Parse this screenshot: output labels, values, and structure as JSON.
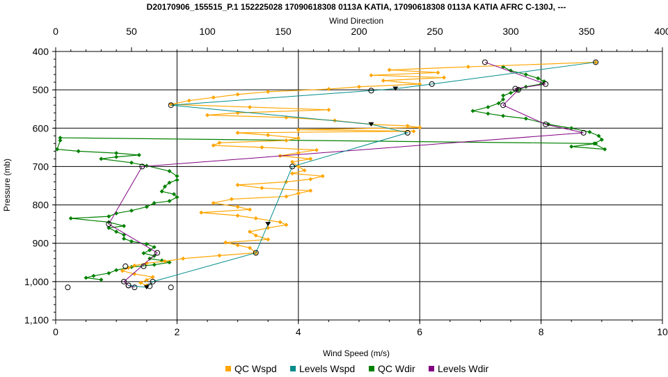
{
  "chart_data": {
    "type": "line",
    "title": "D20170906_155515_P.1 152225028 17090618308 0113A KATIA, 17090618308 0113A KATIA AFRC C-130J, ---",
    "top_axis": {
      "label": "Wind Direction",
      "range": [
        0,
        400
      ],
      "ticks": [
        "0",
        "50",
        "100",
        "150",
        "200",
        "250",
        "300",
        "350",
        "400"
      ]
    },
    "bottom_axis": {
      "label": "Wind Speed (m/s)",
      "range": [
        0,
        10
      ],
      "ticks": [
        "0",
        "2",
        "4",
        "6",
        "8",
        "10"
      ]
    },
    "y_axis": {
      "label": "Pressure (mb)",
      "range": [
        400,
        1100
      ],
      "inverted": true,
      "ticks": [
        "400",
        "500",
        "600",
        "700",
        "800",
        "900",
        "1,000",
        "1,100"
      ]
    },
    "grid": true,
    "legend_position": "bottom",
    "colors": {
      "qc_wspd": "#ffa500",
      "levels_wspd": "#008b8b",
      "qc_wdir": "#008000",
      "levels_wdir": "#800080"
    },
    "series": [
      {
        "name": "QC Wspd",
        "axis": "bottom",
        "marker": "diamond",
        "points": [
          [
            8.9,
            428
          ],
          [
            6.8,
            440
          ],
          [
            5.5,
            448
          ],
          [
            6.3,
            455
          ],
          [
            5.2,
            462
          ],
          [
            6.4,
            468
          ],
          [
            5.4,
            476
          ],
          [
            6.0,
            485
          ],
          [
            5.0,
            492
          ],
          [
            4.5,
            498
          ],
          [
            3.5,
            505
          ],
          [
            3.0,
            512
          ],
          [
            2.6,
            520
          ],
          [
            2.2,
            528
          ],
          [
            1.9,
            538
          ],
          [
            3.2,
            545
          ],
          [
            4.5,
            552
          ],
          [
            3.0,
            560
          ],
          [
            2.5,
            566
          ],
          [
            3.8,
            572
          ],
          [
            4.6,
            580
          ],
          [
            5.2,
            590
          ],
          [
            5.8,
            594
          ],
          [
            6.0,
            598
          ],
          [
            4.0,
            604
          ],
          [
            5.9,
            608
          ],
          [
            3.0,
            612
          ],
          [
            3.5,
            618
          ],
          [
            4.0,
            626
          ],
          [
            3.8,
            632
          ],
          [
            2.7,
            638
          ],
          [
            2.6,
            645
          ],
          [
            3.4,
            650
          ],
          [
            4.3,
            657
          ],
          [
            4.0,
            664
          ],
          [
            3.7,
            672
          ],
          [
            4.2,
            680
          ],
          [
            3.9,
            688
          ],
          [
            4.0,
            700
          ],
          [
            4.1,
            710
          ],
          [
            3.9,
            718
          ],
          [
            4.4,
            725
          ],
          [
            4.2,
            733
          ],
          [
            3.8,
            740
          ],
          [
            3.0,
            748
          ],
          [
            3.4,
            756
          ],
          [
            4.2,
            763
          ],
          [
            4.0,
            770
          ],
          [
            3.8,
            778
          ],
          [
            2.9,
            785
          ],
          [
            2.6,
            795
          ],
          [
            3.0,
            805
          ],
          [
            3.2,
            812
          ],
          [
            2.4,
            820
          ],
          [
            3.0,
            828
          ],
          [
            3.3,
            835
          ],
          [
            3.7,
            845
          ],
          [
            3.8,
            852
          ],
          [
            3.5,
            860
          ],
          [
            3.2,
            870
          ],
          [
            3.3,
            880
          ],
          [
            3.5,
            890
          ],
          [
            2.8,
            898
          ],
          [
            3.0,
            905
          ],
          [
            3.2,
            912
          ],
          [
            3.3,
            925
          ],
          [
            2.7,
            932
          ],
          [
            2.1,
            940
          ],
          [
            1.8,
            947
          ],
          [
            1.5,
            952
          ],
          [
            1.3,
            958
          ],
          [
            1.2,
            964
          ],
          [
            1.1,
            972
          ],
          [
            1.3,
            980
          ],
          [
            1.6,
            988
          ],
          [
            1.5,
            996
          ],
          [
            1.4,
            1003
          ],
          [
            1.5,
            1010
          ]
        ]
      },
      {
        "name": "Levels Wspd",
        "axis": "bottom",
        "marker": "mixed",
        "points": [
          [
            8.9,
            428
          ],
          [
            6.2,
            485
          ],
          [
            5.6,
            497
          ],
          [
            5.2,
            502
          ],
          [
            1.9,
            540
          ],
          [
            5.2,
            590
          ],
          [
            5.8,
            612
          ],
          [
            3.9,
            700
          ],
          [
            3.5,
            850
          ],
          [
            3.3,
            925
          ],
          [
            1.6,
            1000
          ],
          [
            1.5,
            1015
          ],
          [
            1.2,
            1010
          ]
        ]
      },
      {
        "name": "QC Wdir",
        "axis": "top",
        "marker": "diamond",
        "points": [
          [
            295,
            440
          ],
          [
            300,
            450
          ],
          [
            310,
            460
          ],
          [
            318,
            470
          ],
          [
            322,
            478
          ],
          [
            320,
            485
          ],
          [
            310,
            492
          ],
          [
            305,
            500
          ],
          [
            300,
            508
          ],
          [
            295,
            515
          ],
          [
            295,
            525
          ],
          [
            292,
            535
          ],
          [
            285,
            545
          ],
          [
            275,
            555
          ],
          [
            285,
            562
          ],
          [
            295,
            568
          ],
          [
            310,
            575
          ],
          [
            325,
            590
          ],
          [
            340,
            600
          ],
          [
            352,
            610
          ],
          [
            358,
            620
          ],
          [
            360,
            630
          ],
          [
            355,
            640
          ],
          [
            362,
            655
          ],
          [
            340,
            648
          ],
          [
            356,
            640
          ],
          [
            3,
            625
          ],
          [
            3,
            632
          ],
          [
            1,
            655
          ],
          [
            15,
            660
          ],
          [
            40,
            665
          ],
          [
            55,
            670
          ],
          [
            40,
            675
          ],
          [
            30,
            680
          ],
          [
            50,
            690
          ],
          [
            60,
            698
          ],
          [
            75,
            712
          ],
          [
            80,
            725
          ],
          [
            80,
            735
          ],
          [
            75,
            742
          ],
          [
            72,
            752
          ],
          [
            70,
            765
          ],
          [
            78,
            772
          ],
          [
            80,
            780
          ],
          [
            75,
            790
          ],
          [
            65,
            795
          ],
          [
            60,
            805
          ],
          [
            50,
            815
          ],
          [
            40,
            822
          ],
          [
            35,
            830
          ],
          [
            10,
            835
          ],
          [
            35,
            845
          ],
          [
            45,
            855
          ],
          [
            35,
            860
          ],
          [
            40,
            870
          ],
          [
            45,
            878
          ],
          [
            45,
            888
          ],
          [
            50,
            895
          ],
          [
            60,
            902
          ],
          [
            65,
            910
          ],
          [
            62,
            918
          ],
          [
            58,
            926
          ],
          [
            65,
            933
          ],
          [
            62,
            940
          ],
          [
            70,
            945
          ],
          [
            75,
            950
          ],
          [
            65,
            956
          ],
          [
            50,
            962
          ],
          [
            40,
            970
          ],
          [
            35,
            978
          ],
          [
            25,
            985
          ],
          [
            20,
            990
          ],
          [
            30,
            995
          ]
        ]
      },
      {
        "name": "Levels Wdir",
        "axis": "top",
        "marker": "circle",
        "points": [
          [
            283,
            428
          ],
          [
            323,
            485
          ],
          [
            303,
            497
          ],
          [
            305,
            500
          ],
          [
            295,
            540
          ],
          [
            323,
            590
          ],
          [
            348,
            612
          ],
          [
            57,
            700
          ],
          [
            35,
            850
          ],
          [
            67,
            925
          ],
          [
            45,
            1000
          ],
          [
            48,
            1010
          ],
          [
            52,
            1015
          ]
        ]
      }
    ],
    "extra_points": [
      [
        0.2,
        1015
      ],
      [
        1.15,
        960
      ],
      [
        1.45,
        960
      ],
      [
        1.9,
        1015
      ],
      [
        1.55,
        1012
      ]
    ]
  }
}
